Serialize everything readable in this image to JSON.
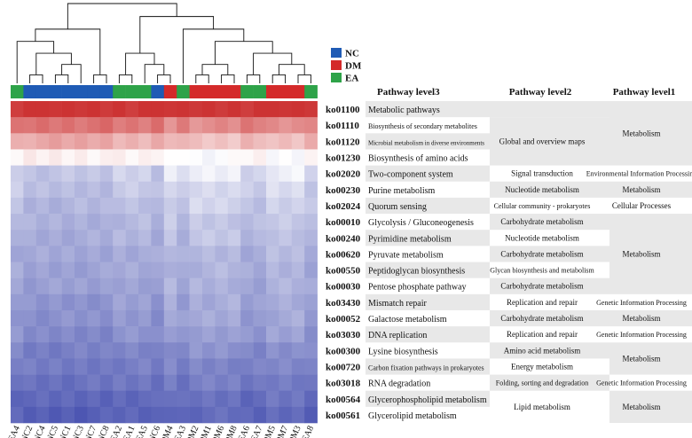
{
  "chart_data": {
    "type": "heatmap",
    "samples": [
      "EA4",
      "NC2",
      "NC4",
      "NC5",
      "NC1",
      "NC3",
      "NC7",
      "NC8",
      "EA2",
      "EA1",
      "EA5",
      "NC6",
      "DM4",
      "EA3",
      "DM2",
      "DM1",
      "DM6",
      "DM8",
      "EA6",
      "EA7",
      "DM5",
      "DM7",
      "DM3",
      "EA8"
    ],
    "sample_groups": [
      "EA",
      "NC",
      "NC",
      "NC",
      "NC",
      "NC",
      "NC",
      "NC",
      "EA",
      "EA",
      "EA",
      "NC",
      "DM",
      "EA",
      "DM",
      "DM",
      "DM",
      "DM",
      "EA",
      "EA",
      "DM",
      "DM",
      "DM",
      "EA"
    ],
    "groups": [
      {
        "name": "NC",
        "color": "#1f5bb5"
      },
      {
        "name": "DM",
        "color": "#d42a2a"
      },
      {
        "name": "EA",
        "color": "#2ea349"
      }
    ],
    "headers": {
      "level3": "Pathway level3",
      "level2": "Pathway level2",
      "level1": "Pathway level1"
    },
    "rows": [
      {
        "id": "ko01100",
        "level3": "Metabolic pathways",
        "base": 1.0,
        "shift": 0.0
      },
      {
        "id": "ko01110",
        "level3": "Biosynthesis of secondary metabolites",
        "base": 0.84,
        "shift": -0.04
      },
      {
        "id": "ko01120",
        "level3": "Microbial metabolism in diverse environments",
        "base": 0.72,
        "shift": -0.04
      },
      {
        "id": "ko01230",
        "level3": "Biosynthesis of amino acids",
        "base": 0.57,
        "shift": -0.03
      },
      {
        "id": "ko02020",
        "level3": "Two-component system",
        "base": 0.44,
        "shift": 0.07
      },
      {
        "id": "ko00230",
        "level3": "Purine metabolism",
        "base": 0.41,
        "shift": 0.05
      },
      {
        "id": "ko02024",
        "level3": "Quorum sensing",
        "base": 0.39,
        "shift": 0.05
      },
      {
        "id": "ko00010",
        "level3": "Glycolysis / Gluconeogenesis",
        "base": 0.37,
        "shift": 0.04
      },
      {
        "id": "ko00240",
        "level3": "Pyrimidine metabolism",
        "base": 0.36,
        "shift": 0.04
      },
      {
        "id": "ko00620",
        "level3": "Pyruvate metabolism",
        "base": 0.34,
        "shift": 0.03
      },
      {
        "id": "ko00550",
        "level3": "Peptidoglycan biosynthesis",
        "base": 0.33,
        "shift": 0.03
      },
      {
        "id": "ko00030",
        "level3": "Pentose phosphate pathway",
        "base": 0.32,
        "shift": 0.03
      },
      {
        "id": "ko03430",
        "level3": "Mismatch repair",
        "base": 0.3,
        "shift": 0.04
      },
      {
        "id": "ko00052",
        "level3": "Galactose metabolism",
        "base": 0.29,
        "shift": 0.04
      },
      {
        "id": "ko03030",
        "level3": "DNA replication",
        "base": 0.27,
        "shift": 0.04
      },
      {
        "id": "ko00300",
        "level3": "Lysine biosynthesis",
        "base": 0.24,
        "shift": 0.03
      },
      {
        "id": "ko00720",
        "level3": "Carbon fixation pathways in prokaryotes",
        "base": 0.22,
        "shift": 0.02
      },
      {
        "id": "ko03018",
        "level3": "RNA degradation",
        "base": 0.2,
        "shift": 0.02
      },
      {
        "id": "ko00564",
        "level3": "Glycerophospholipid metabolism",
        "base": 0.17,
        "shift": 0.02
      },
      {
        "id": "ko00561",
        "level3": "Glycerolipid metabolism",
        "base": 0.15,
        "shift": 0.02
      }
    ],
    "level2_blocks": [
      {
        "label": "Global and overview maps",
        "rows": [
          1,
          3
        ]
      },
      {
        "label": "Signal transduction",
        "rows": [
          4,
          4
        ]
      },
      {
        "label": "Nucleotide metabolism",
        "rows": [
          5,
          5
        ]
      },
      {
        "label": "Cellular community - prokaryotes",
        "rows": [
          6,
          6
        ]
      },
      {
        "label": "Carbohydrate metabolism",
        "rows": [
          7,
          7
        ]
      },
      {
        "label": "Nucleotide metabolism",
        "rows": [
          8,
          8
        ]
      },
      {
        "label": "Carbohydrate metabolism",
        "rows": [
          9,
          9
        ]
      },
      {
        "label": "Glycan biosynthesis and metabolism",
        "rows": [
          10,
          10
        ]
      },
      {
        "label": "Carbohydrate metabolism",
        "rows": [
          11,
          11
        ]
      },
      {
        "label": "Replication and repair",
        "rows": [
          12,
          12
        ]
      },
      {
        "label": "Carbohydrate metabolism",
        "rows": [
          13,
          13
        ]
      },
      {
        "label": "Replication and repair",
        "rows": [
          14,
          14
        ]
      },
      {
        "label": "Amino acid metabolism",
        "rows": [
          15,
          15
        ]
      },
      {
        "label": "Energy metabolism",
        "rows": [
          16,
          16
        ]
      },
      {
        "label": "Folding, sorting and degradation",
        "rows": [
          17,
          17
        ]
      },
      {
        "label": "Lipid metabolism",
        "rows": [
          18,
          19
        ]
      }
    ],
    "level1_blocks": [
      {
        "label": "Metabolism",
        "rows": [
          0,
          3
        ]
      },
      {
        "label": "Environmental Information Processing",
        "rows": [
          4,
          4
        ]
      },
      {
        "label": "Metabolism",
        "rows": [
          5,
          5
        ]
      },
      {
        "label": "Cellular Processes",
        "rows": [
          6,
          6
        ]
      },
      {
        "label": "Metabolism",
        "rows": [
          7,
          11
        ]
      },
      {
        "label": "Genetic Information Processing",
        "rows": [
          12,
          12
        ]
      },
      {
        "label": "Metabolism",
        "rows": [
          13,
          13
        ]
      },
      {
        "label": "Genetic Information Processing",
        "rows": [
          14,
          14
        ]
      },
      {
        "label": "Metabolism",
        "rows": [
          15,
          16
        ]
      },
      {
        "label": "Genetic Information Processing",
        "rows": [
          17,
          17
        ]
      },
      {
        "label": "Metabolism",
        "rows": [
          18,
          19
        ]
      }
    ],
    "color_scale": {
      "low": "#1e2a9e",
      "mid": "#ffffff",
      "high": "#cc3333"
    }
  }
}
